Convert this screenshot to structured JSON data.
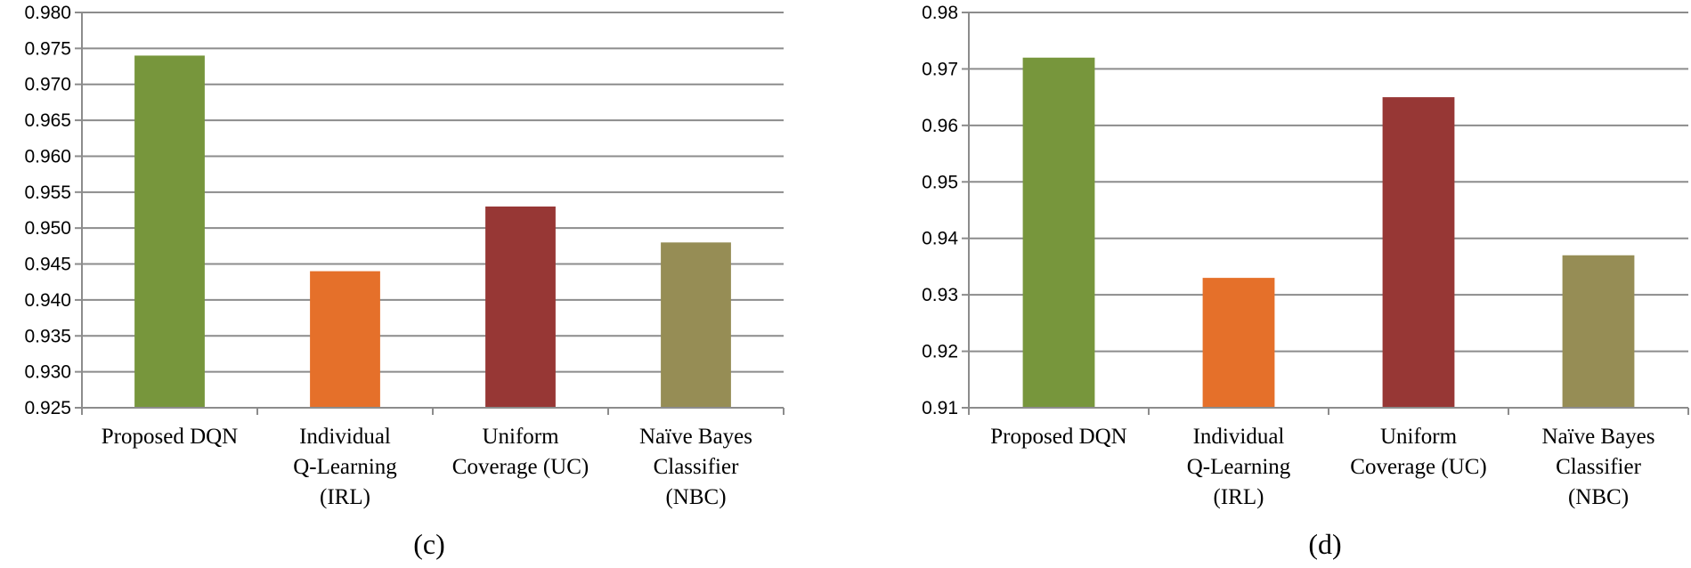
{
  "chart_data": [
    {
      "type": "bar",
      "panel_label": "(c)",
      "categories": [
        [
          "Proposed DQN"
        ],
        [
          "Individual",
          "Q-Learning",
          "(IRL)"
        ],
        [
          "Uniform",
          "Coverage (UC)"
        ],
        [
          "Naïve Bayes",
          "Classifier",
          "(NBC)"
        ]
      ],
      "values": [
        0.974,
        0.944,
        0.953,
        0.948
      ],
      "colors": [
        "#77963c",
        "#e5702a",
        "#973735",
        "#968d55"
      ],
      "ylim": [
        0.925,
        0.98
      ],
      "yticks": [
        "0.925",
        "0.930",
        "0.935",
        "0.940",
        "0.945",
        "0.950",
        "0.955",
        "0.960",
        "0.965",
        "0.970",
        "0.975",
        "0.980"
      ],
      "grid": true
    },
    {
      "type": "bar",
      "panel_label": "(d)",
      "categories": [
        [
          "Proposed DQN"
        ],
        [
          "Individual",
          "Q-Learning",
          "(IRL)"
        ],
        [
          "Uniform",
          "Coverage (UC)"
        ],
        [
          "Naïve Bayes",
          "Classifier",
          "(NBC)"
        ]
      ],
      "values": [
        0.972,
        0.933,
        0.965,
        0.937
      ],
      "colors": [
        "#77963c",
        "#e5702a",
        "#973735",
        "#968d55"
      ],
      "ylim": [
        0.91,
        0.98
      ],
      "yticks": [
        "0.91",
        "0.92",
        "0.93",
        "0.94",
        "0.95",
        "0.96",
        "0.97",
        "0.98"
      ],
      "grid": true
    }
  ],
  "style": {
    "grid_color": "#8c8c8c",
    "axis_color": "#8c8c8c"
  }
}
